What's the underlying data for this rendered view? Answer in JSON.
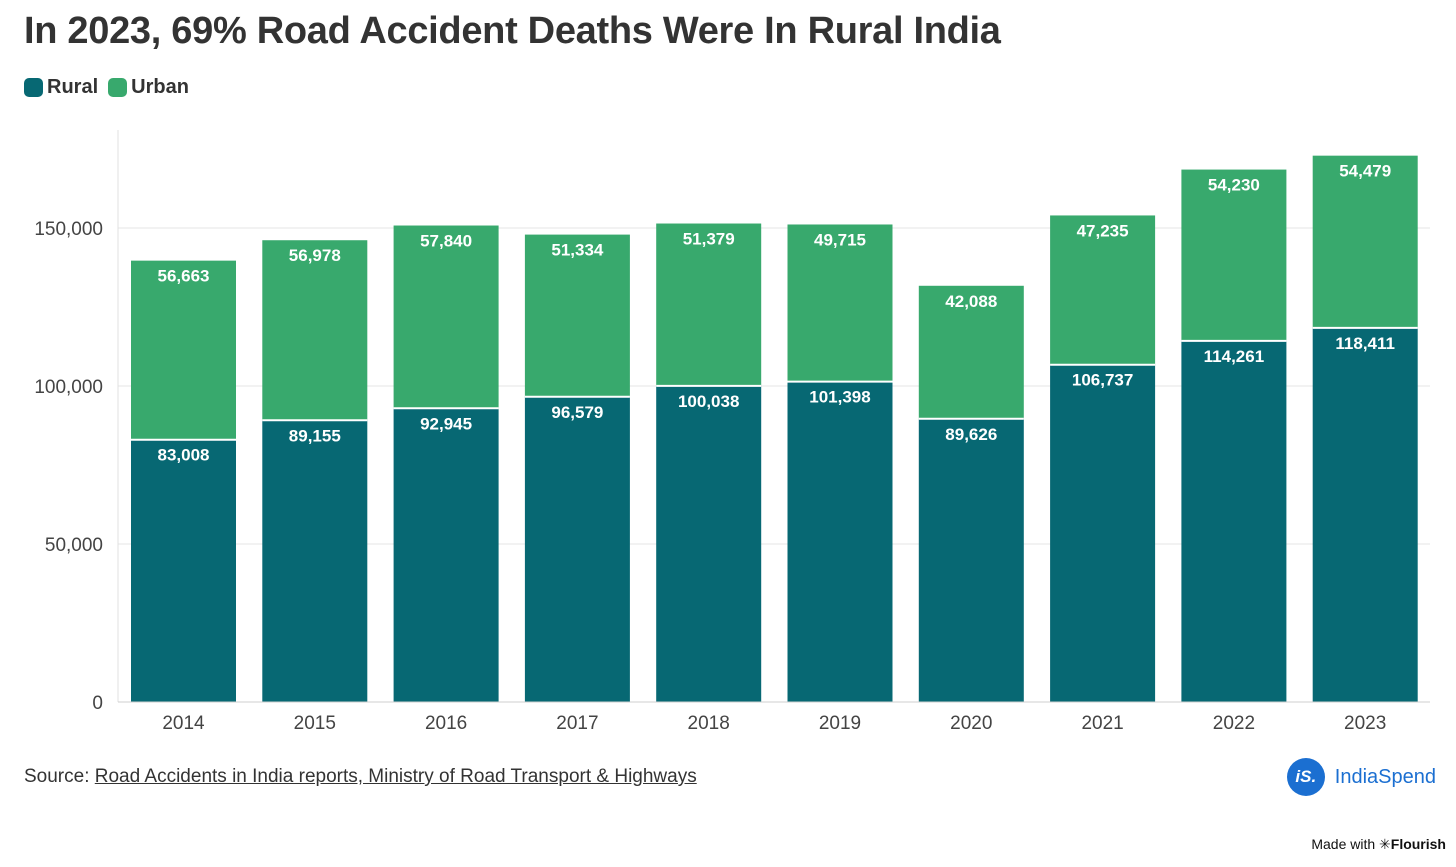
{
  "title": "In 2023, 69% Road Accident Deaths Were In Rural India",
  "legend": [
    {
      "label": "Rural",
      "color": "#076873"
    },
    {
      "label": "Urban",
      "color": "#38a96d"
    }
  ],
  "chart_data": {
    "type": "bar",
    "stacked": true,
    "title": "In 2023, 69% Road Accident Deaths Were In Rural India",
    "categories": [
      "2014",
      "2015",
      "2016",
      "2017",
      "2018",
      "2019",
      "2020",
      "2021",
      "2022",
      "2023"
    ],
    "series": [
      {
        "name": "Rural",
        "color": "#076873",
        "values": [
          83008,
          89155,
          92945,
          96579,
          100038,
          101398,
          89626,
          106737,
          114261,
          118411
        ]
      },
      {
        "name": "Urban",
        "color": "#38a96d",
        "values": [
          56663,
          56978,
          57840,
          51334,
          51379,
          49715,
          42088,
          47235,
          54230,
          54479
        ]
      }
    ],
    "ylim": [
      0,
      180000
    ],
    "yticks": [
      0,
      50000,
      100000,
      150000
    ],
    "ytick_labels": [
      "0",
      "50,000",
      "100,000",
      "150,000"
    ],
    "grid": true,
    "xlabel": "",
    "ylabel": ""
  },
  "source": {
    "prefix": "Source: ",
    "link_text": "Road Accidents in India reports, Ministry of Road Transport & Highways"
  },
  "brand": {
    "logo_text": "iS.",
    "name": "IndiaSpend"
  },
  "credit": {
    "prefix": "Made with ",
    "star": "✳",
    "name": "Flourish"
  }
}
